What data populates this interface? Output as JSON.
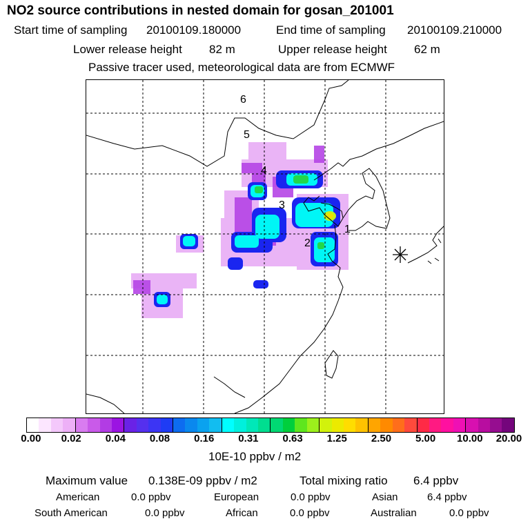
{
  "title": "NO2 source contributions in nested domain for gosan_201001",
  "header": {
    "start_label": "Start time of sampling",
    "start_value": "20100109.180000",
    "end_label": "End time of sampling",
    "end_value": "20100109.210000",
    "lower_label": "Lower release height",
    "lower_value": "82 m",
    "upper_label": "Upper release height",
    "upper_value": "62 m",
    "note": "Passive tracer used, meteorological data are from ECMWF"
  },
  "map": {
    "day_labels": [
      "1",
      "2",
      "3",
      "4",
      "5",
      "6"
    ],
    "receptor_marker": "asterisk-icon"
  },
  "colorbar": {
    "ticks": [
      "0.00",
      "0.02",
      "0.04",
      "0.08",
      "0.16",
      "0.31",
      "0.63",
      "1.25",
      "2.50",
      "5.00",
      "10.00",
      "20.00"
    ],
    "colors": [
      "#ffffff",
      "#fce6ff",
      "#f4c8fb",
      "#edb0f7",
      "#d97cf0",
      "#c95ae9",
      "#b23ce4",
      "#9b14e2",
      "#6a22e6",
      "#5530ee",
      "#3c35f4",
      "#1f3cf5",
      "#0d6cf0",
      "#0a88ee",
      "#0aa2ef",
      "#12bdf0",
      "#00ffff",
      "#00f0dd",
      "#00e8b8",
      "#00de90",
      "#00d873",
      "#00cf3c",
      "#5ee61e",
      "#9cf01c",
      "#d2f20c",
      "#ecea00",
      "#ffdd00",
      "#ffc200",
      "#ffa500",
      "#ff8a00",
      "#ff6e1b",
      "#ff4a3c",
      "#ff2a46",
      "#ff1a82",
      "#ff10a0",
      "#ef10b4",
      "#d810b0",
      "#b80da0",
      "#960d90",
      "#74057c"
    ],
    "unit": "10E-10 ppbv / m2"
  },
  "summary": {
    "max_label": "Maximum value",
    "max_value": "0.138E-09 ppbv / m2",
    "total_label": "Total mixing ratio",
    "total_value": "6.4 ppbv"
  },
  "regions": [
    {
      "name": "American",
      "value": "0.0 ppbv"
    },
    {
      "name": "European",
      "value": "0.0 ppbv"
    },
    {
      "name": "Asian",
      "value": "6.4 ppbv"
    },
    {
      "name": "South American",
      "value": "0.0 ppbv"
    },
    {
      "name": "African",
      "value": "0.0 ppbv"
    },
    {
      "name": "Australian",
      "value": "0.0 ppbv"
    }
  ]
}
